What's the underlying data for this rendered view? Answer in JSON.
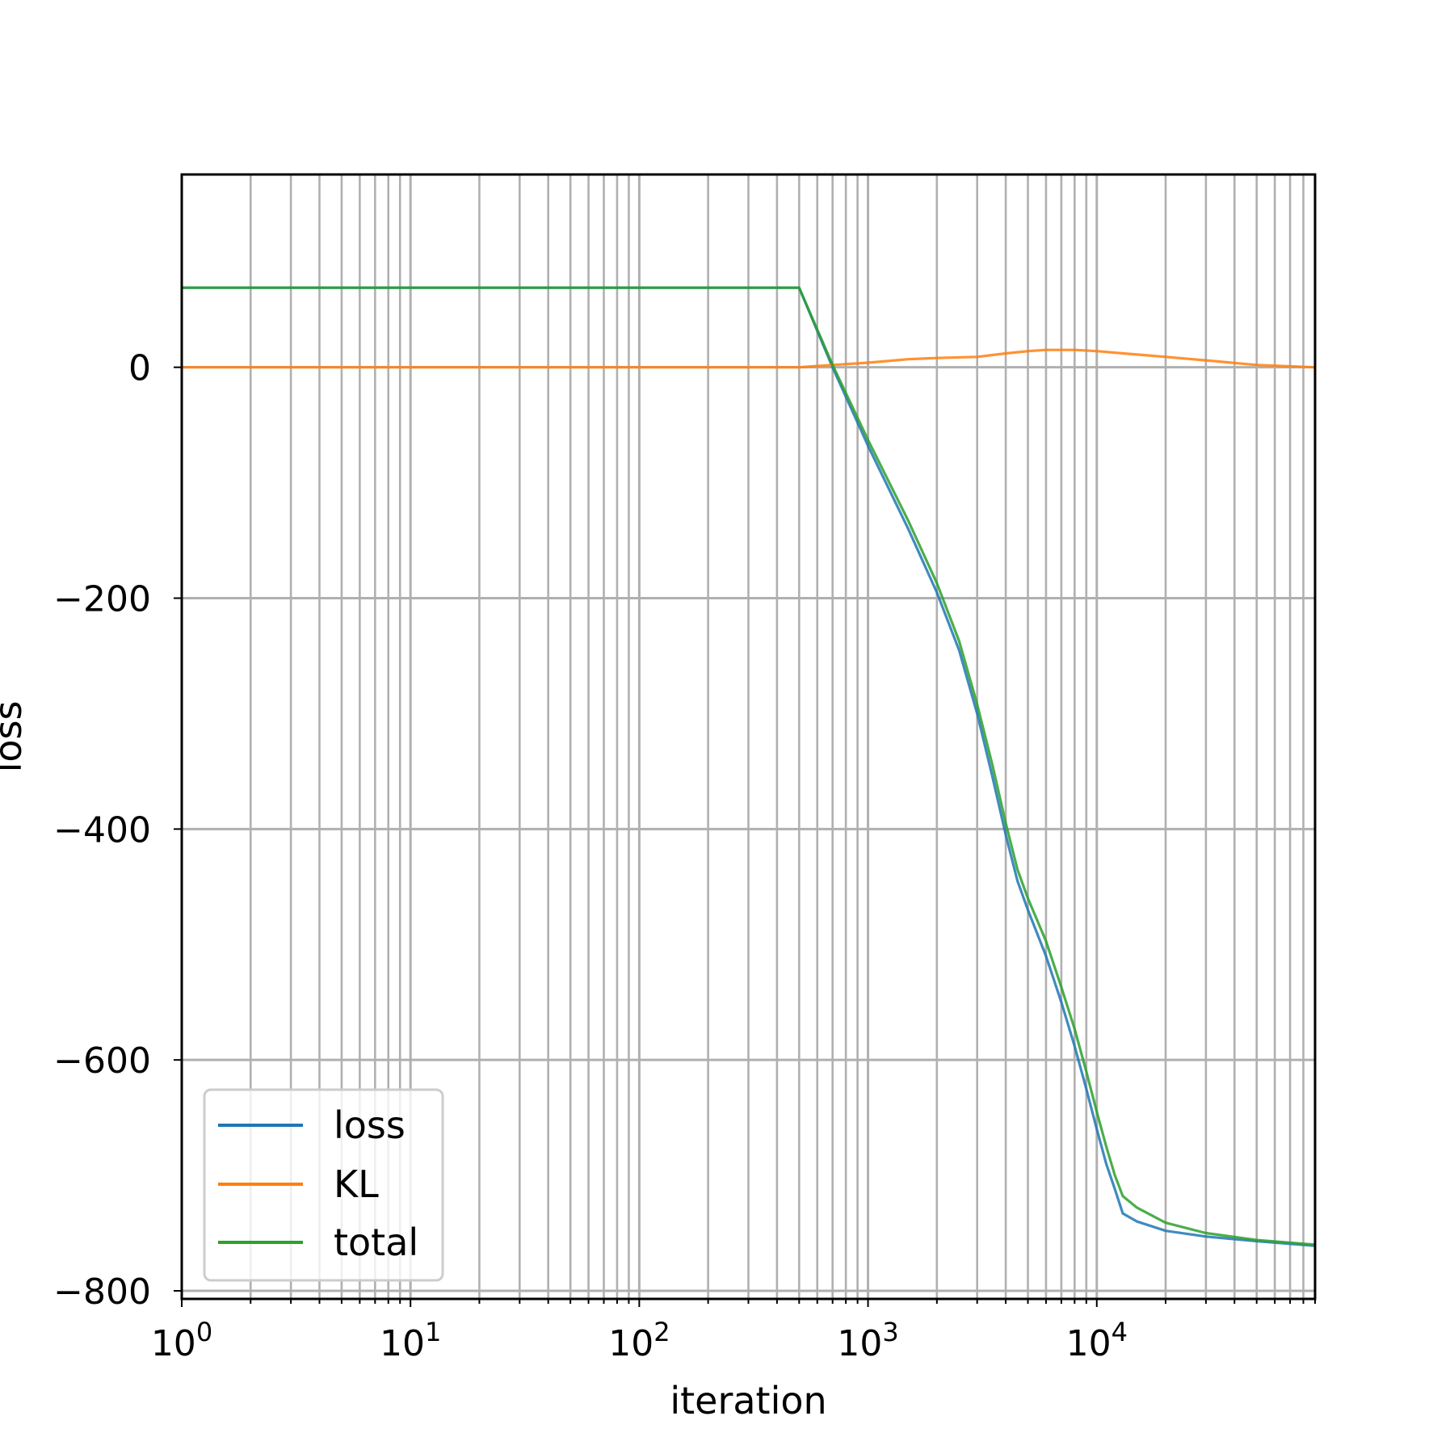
{
  "chart_data": {
    "type": "line",
    "xlabel": "iteration",
    "ylabel": "loss",
    "xscale": "log",
    "xlim": [
      1,
      90000
    ],
    "ylim": [
      -807,
      167
    ],
    "grid": true,
    "grid_which": "both",
    "legend_position": "lower-left",
    "x_ticks": [
      {
        "base": "10",
        "exp": "0",
        "value": 1
      },
      {
        "base": "10",
        "exp": "1",
        "value": 10
      },
      {
        "base": "10",
        "exp": "2",
        "value": 100
      },
      {
        "base": "10",
        "exp": "3",
        "value": 1000
      },
      {
        "base": "10",
        "exp": "4",
        "value": 10000
      }
    ],
    "y_ticks": [
      {
        "label": "0",
        "value": 0
      },
      {
        "label": "−200",
        "value": -200
      },
      {
        "label": "−400",
        "value": -400
      },
      {
        "label": "−600",
        "value": -600
      },
      {
        "label": "−800",
        "value": -800
      }
    ],
    "series": [
      {
        "name": "loss",
        "color": "#1f77b4",
        "x": [
          1,
          100,
          500,
          700,
          1000,
          1500,
          2000,
          2500,
          3000,
          3500,
          4000,
          4500,
          5000,
          6000,
          7000,
          8000,
          9000,
          10000,
          11000,
          12000,
          13000,
          15000,
          20000,
          30000,
          50000,
          90000
        ],
        "y": [
          69,
          69,
          69,
          0,
          -68,
          -140,
          -195,
          -245,
          -300,
          -355,
          -405,
          -445,
          -470,
          -510,
          -550,
          -588,
          -625,
          -660,
          -690,
          -712,
          -733,
          -740,
          -748,
          -753,
          -757,
          -761
        ]
      },
      {
        "name": "KL",
        "color": "#ff7f0e",
        "x": [
          1,
          100,
          500,
          700,
          1000,
          1500,
          2000,
          3000,
          4000,
          5000,
          6000,
          7000,
          8000,
          10000,
          15000,
          20000,
          30000,
          50000,
          90000
        ],
        "y": [
          0,
          0,
          0,
          2,
          4,
          7,
          8,
          9,
          12,
          14,
          15,
          15,
          15,
          14,
          11,
          9,
          6,
          2,
          0
        ]
      },
      {
        "name": "total",
        "color": "#2ca02c",
        "x": [
          1,
          100,
          500,
          700,
          1000,
          1500,
          2000,
          2500,
          3000,
          3500,
          4000,
          4500,
          5000,
          6000,
          7000,
          8000,
          9000,
          10000,
          11000,
          12000,
          13000,
          15000,
          20000,
          30000,
          50000,
          90000
        ],
        "y": [
          69,
          69,
          69,
          2,
          -63,
          -133,
          -187,
          -237,
          -292,
          -345,
          -395,
          -435,
          -460,
          -497,
          -537,
          -573,
          -610,
          -645,
          -675,
          -700,
          -718,
          -728,
          -741,
          -750,
          -756,
          -760
        ]
      }
    ]
  }
}
